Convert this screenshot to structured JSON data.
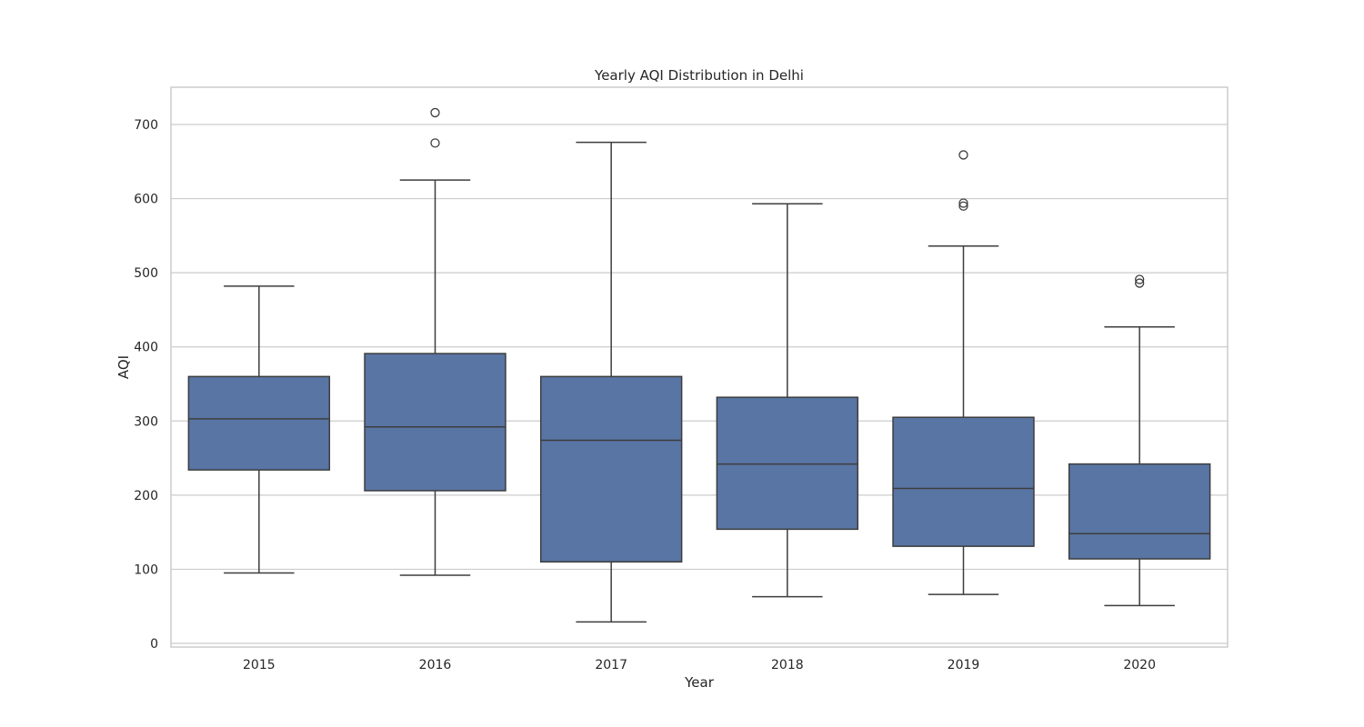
{
  "chart_data": {
    "type": "box",
    "title": "Yearly AQI Distribution in Delhi",
    "xlabel": "Year",
    "ylabel": "AQI",
    "categories": [
      "2015",
      "2016",
      "2017",
      "2018",
      "2019",
      "2020"
    ],
    "yticks": [
      0,
      100,
      200,
      300,
      400,
      500,
      600,
      700
    ],
    "ytick_labels": [
      "0",
      "100",
      "200",
      "300",
      "400",
      "500",
      "600",
      "700"
    ],
    "ylim": [
      -5,
      750
    ],
    "grid": true,
    "box_color": "#5975a4",
    "line_color": "#3d3d3d",
    "boxes": [
      {
        "category": "2015",
        "whisker_low": 95,
        "q1": 234,
        "median": 303,
        "q3": 360,
        "whisker_high": 482,
        "outliers": []
      },
      {
        "category": "2016",
        "whisker_low": 92,
        "q1": 206,
        "median": 292,
        "q3": 391,
        "whisker_high": 625,
        "outliers": [
          675,
          716
        ]
      },
      {
        "category": "2017",
        "whisker_low": 29,
        "q1": 110,
        "median": 274,
        "q3": 360,
        "whisker_high": 676,
        "outliers": []
      },
      {
        "category": "2018",
        "whisker_low": 63,
        "q1": 154,
        "median": 242,
        "q3": 332,
        "whisker_high": 593,
        "outliers": []
      },
      {
        "category": "2019",
        "whisker_low": 66,
        "q1": 131,
        "median": 209,
        "q3": 305,
        "whisker_high": 536,
        "outliers": [
          590,
          594,
          659
        ]
      },
      {
        "category": "2020",
        "whisker_low": 51,
        "q1": 114,
        "median": 148,
        "q3": 242,
        "whisker_high": 427,
        "outliers": [
          486,
          491
        ]
      }
    ]
  }
}
